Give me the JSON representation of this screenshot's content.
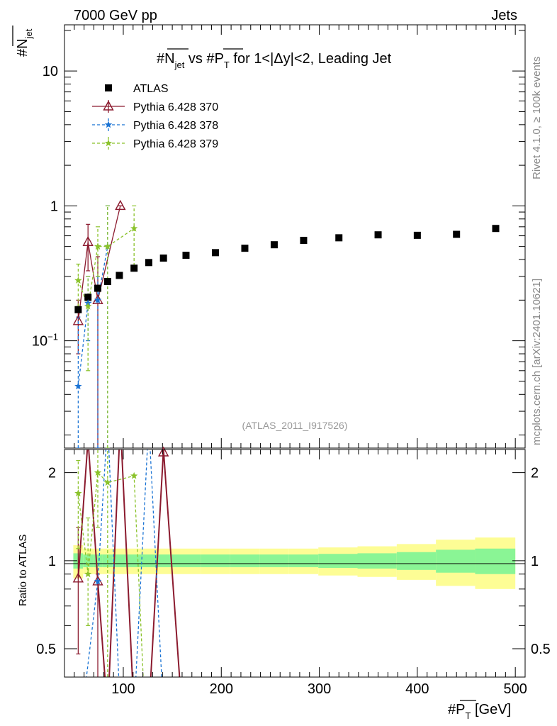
{
  "header": {
    "left": "7000 GeV pp",
    "right": "Jets",
    "right_side_top": "Rivet 4.1.0, ≥ 100k events",
    "right_side_bottom": "mcplots.cern.ch [arXiv:2401.10621]",
    "watermark": "(ATLAS_2011_I917526)"
  },
  "chart_data": {
    "type": "scatter",
    "title": {
      "p1": "#N",
      "p1sub": "jet",
      "p2": " vs #",
      "p3": "P",
      "p3sub": "T",
      "p4": " for 1<|Δy|<2, Leading Jet"
    },
    "ylabel": {
      "main": "#N",
      "sub": "jet"
    },
    "xlabel": {
      "main": "#P",
      "sub": "T",
      "unit": " [GeV]"
    },
    "ratio_ylabel": "Ratio to ATLAS",
    "xlim": [
      40,
      510
    ],
    "ylim": [
      0.016,
      22
    ],
    "ylog": true,
    "ratio_ylim": [
      0.4,
      2.4
    ],
    "x_ticks": [
      100,
      200,
      300,
      400,
      500
    ],
    "x_tick_labels": [
      "100",
      "200",
      "300",
      "400",
      "500"
    ],
    "y_ticks": [
      0.1,
      1,
      10
    ],
    "y_tick_labels": [
      "10−1",
      "1",
      "10"
    ],
    "ratio_ticks": [
      0.5,
      1,
      2
    ],
    "ratio_tick_labels": [
      "0.5",
      "1",
      "2"
    ],
    "series": [
      {
        "name": "ATLAS",
        "color": "#000000",
        "marker": "square",
        "x": [
          54,
          64,
          74,
          84,
          96,
          111,
          126,
          141,
          164,
          194,
          224,
          254,
          284,
          320,
          360,
          400,
          440,
          480
        ],
        "y": [
          0.17,
          0.21,
          0.245,
          0.275,
          0.305,
          0.345,
          0.38,
          0.41,
          0.43,
          0.45,
          0.485,
          0.515,
          0.555,
          0.58,
          0.61,
          0.605,
          0.615,
          0.68
        ]
      },
      {
        "name": "Pythia 6.428 370",
        "color": "#8b1a2e",
        "marker": "triangle",
        "dash": "",
        "x": [
          54,
          64,
          74,
          97
        ],
        "y": [
          0.14,
          0.54,
          0.2,
          1.0
        ],
        "ylo": [
          0.08,
          0.33,
          0.016,
          1.0
        ],
        "yhi": [
          0.2,
          0.73,
          0.42,
          1.0
        ]
      },
      {
        "name": "Pythia 6.428 378",
        "color": "#1a73d4",
        "marker": "star",
        "dash": "4,3",
        "x": [
          54,
          64,
          74,
          84
        ],
        "y": [
          0.046,
          0.19,
          0.2,
          0.5
        ],
        "ylo": [
          0.016,
          0.1,
          0.016,
          0.016
        ],
        "yhi": [
          0.15,
          0.3,
          0.3,
          1.0
        ]
      },
      {
        "name": "Pythia 6.428 379",
        "color": "#8ac22a",
        "marker": "star",
        "dash": "4,3",
        "x": [
          54,
          64,
          74,
          84,
          111
        ],
        "y": [
          0.28,
          0.18,
          0.5,
          0.5,
          0.68
        ],
        "ylo": [
          0.18,
          0.06,
          0.3,
          0.016,
          0.33
        ],
        "yhi": [
          0.37,
          0.3,
          0.7,
          1.0,
          1.0
        ]
      }
    ],
    "ratio_series": [
      {
        "name": "Pythia 6.428 370",
        "color": "#8b1a2e",
        "marker": "triangle",
        "dash": "",
        "x": [
          54,
          64,
          74,
          84,
          97,
          111,
          126,
          141,
          160
        ],
        "y": [
          0.87,
          2.6,
          0.85,
          0.3,
          3.0,
          0.3,
          0.3,
          2.4,
          0.3
        ],
        "markers": [
          54,
          74,
          141
        ],
        "ylo": [
          0.48,
          null,
          0.3,
          null,
          null,
          null,
          null,
          null,
          null
        ],
        "yhi": [
          1.3,
          null,
          0.9,
          null,
          null,
          null,
          null,
          null,
          null
        ]
      },
      {
        "name": "Pythia 6.428 378",
        "color": "#1a73d4",
        "marker": "star",
        "dash": "4,3",
        "x": [
          58,
          74,
          84,
          97,
          111,
          126,
          141
        ],
        "y": [
          0.3,
          0.85,
          3.0,
          0.3,
          0.3,
          3.0,
          0.3
        ],
        "markers": [
          74
        ]
      },
      {
        "name": "Pythia 6.428 379",
        "color": "#8ac22a",
        "marker": "star",
        "dash": "4,3",
        "x": [
          54,
          64,
          74,
          84,
          111,
          122
        ],
        "y": [
          1.7,
          0.9,
          2.0,
          1.85,
          1.95,
          0.3
        ],
        "markers": [
          54,
          64,
          74,
          84,
          111
        ],
        "ylo": [
          1.1,
          0.6,
          1.3,
          0.4,
          null,
          null
        ],
        "yhi": [
          2.2,
          1.4,
          2.5,
          2.6,
          null,
          null
        ]
      }
    ],
    "ratio_bands": {
      "x_edges": [
        49,
        59,
        69,
        79,
        89,
        104,
        119,
        134,
        149,
        179,
        209,
        239,
        269,
        299,
        339,
        379,
        419,
        459,
        500
      ],
      "green_half": [
        0.06,
        0.05,
        0.05,
        0.05,
        0.05,
        0.05,
        0.05,
        0.05,
        0.05,
        0.05,
        0.05,
        0.05,
        0.05,
        0.055,
        0.06,
        0.07,
        0.09,
        0.1
      ],
      "yellow_half": [
        0.13,
        0.1,
        0.1,
        0.1,
        0.1,
        0.1,
        0.1,
        0.1,
        0.1,
        0.1,
        0.1,
        0.1,
        0.1,
        0.11,
        0.12,
        0.14,
        0.18,
        0.2
      ],
      "green_color": "#8af595",
      "yellow_color": "#fdfd95"
    }
  }
}
